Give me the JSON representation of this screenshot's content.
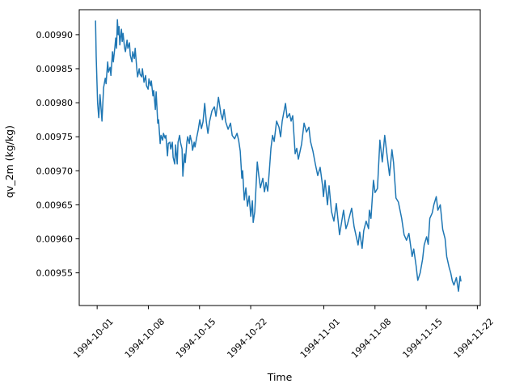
{
  "figure": {
    "background": "#ffffff",
    "plot_background": "#ffffff",
    "spine_color": "#000000"
  },
  "chart_data": {
    "type": "line",
    "title": "",
    "xlabel": "Time",
    "ylabel": "qv_2m (kg/kg)",
    "grid": false,
    "legend": "none",
    "line_color": "#1f77b4",
    "line_width": 1.5,
    "x_unit": "days since 1994-10-01",
    "xlim_days": [
      -2.45,
      52.4
    ],
    "ylim": [
      0.009502,
      0.0099367
    ],
    "x_ticks": [
      {
        "day": 0,
        "label": "1994-10-01"
      },
      {
        "day": 7,
        "label": "1994-10-08"
      },
      {
        "day": 14,
        "label": "1994-10-15"
      },
      {
        "day": 21,
        "label": "1994-10-22"
      },
      {
        "day": 31,
        "label": "1994-11-01"
      },
      {
        "day": 38,
        "label": "1994-11-08"
      },
      {
        "day": 45,
        "label": "1994-11-15"
      },
      {
        "day": 52,
        "label": "1994-11-22"
      }
    ],
    "y_ticks": [
      {
        "value": 0.00955,
        "label": "0.00955"
      },
      {
        "value": 0.0096,
        "label": "0.00960"
      },
      {
        "value": 0.00965,
        "label": "0.00965"
      },
      {
        "value": 0.0097,
        "label": "0.00970"
      },
      {
        "value": 0.00975,
        "label": "0.00975"
      },
      {
        "value": 0.0098,
        "label": "0.00980"
      },
      {
        "value": 0.00985,
        "label": "0.00985"
      },
      {
        "value": 0.0099,
        "label": "0.00990"
      }
    ],
    "series": [
      {
        "name": "qv_2m",
        "points": [
          [
            -0.22,
            0.00992
          ],
          [
            -0.13,
            0.009868
          ],
          [
            0.06,
            0.0098
          ],
          [
            0.22,
            0.009778
          ],
          [
            0.39,
            0.009812
          ],
          [
            0.55,
            0.00979
          ],
          [
            0.66,
            0.009773
          ],
          [
            0.88,
            0.009822
          ],
          [
            1.11,
            0.009836
          ],
          [
            1.22,
            0.009828
          ],
          [
            1.44,
            0.00986
          ],
          [
            1.55,
            0.009845
          ],
          [
            1.77,
            0.009852
          ],
          [
            1.88,
            0.00984
          ],
          [
            2.1,
            0.009875
          ],
          [
            2.21,
            0.00986
          ],
          [
            2.43,
            0.009882
          ],
          [
            2.54,
            0.009895
          ],
          [
            2.65,
            0.00988
          ],
          [
            2.77,
            0.009922
          ],
          [
            2.88,
            0.0099
          ],
          [
            2.99,
            0.009912
          ],
          [
            3.1,
            0.009885
          ],
          [
            3.32,
            0.009908
          ],
          [
            3.43,
            0.00989
          ],
          [
            3.54,
            0.009902
          ],
          [
            3.76,
            0.00988
          ],
          [
            3.87,
            0.009875
          ],
          [
            4.09,
            0.009892
          ],
          [
            4.2,
            0.00988
          ],
          [
            4.42,
            0.009888
          ],
          [
            4.53,
            0.00987
          ],
          [
            4.76,
            0.00986
          ],
          [
            4.87,
            0.009875
          ],
          [
            5.09,
            0.009865
          ],
          [
            5.2,
            0.00988
          ],
          [
            5.42,
            0.00985
          ],
          [
            5.53,
            0.009838
          ],
          [
            5.75,
            0.00985
          ],
          [
            5.86,
            0.009842
          ],
          [
            6.08,
            0.009838
          ],
          [
            6.19,
            0.00985
          ],
          [
            6.41,
            0.00983
          ],
          [
            6.63,
            0.00984
          ],
          [
            6.75,
            0.009825
          ],
          [
            6.97,
            0.00982
          ],
          [
            7.08,
            0.009835
          ],
          [
            7.3,
            0.009825
          ],
          [
            7.41,
            0.009832
          ],
          [
            7.63,
            0.00981
          ],
          [
            7.74,
            0.009818
          ],
          [
            7.96,
            0.00979
          ],
          [
            8.07,
            0.009816
          ],
          [
            8.29,
            0.00977
          ],
          [
            8.4,
            0.009775
          ],
          [
            8.62,
            0.00974
          ],
          [
            8.74,
            0.009752
          ],
          [
            8.96,
            0.009745
          ],
          [
            9.07,
            0.009755
          ],
          [
            9.29,
            0.009748
          ],
          [
            9.4,
            0.009752
          ],
          [
            9.62,
            0.009722
          ],
          [
            9.73,
            0.00974
          ],
          [
            9.95,
            0.009742
          ],
          [
            10.06,
            0.009732
          ],
          [
            10.28,
            0.009742
          ],
          [
            10.39,
            0.00972
          ],
          [
            10.61,
            0.00971
          ],
          [
            10.73,
            0.009738
          ],
          [
            10.95,
            0.00971
          ],
          [
            11.06,
            0.009742
          ],
          [
            11.28,
            0.009752
          ],
          [
            11.39,
            0.009742
          ],
          [
            11.61,
            0.009732
          ],
          [
            11.72,
            0.009692
          ],
          [
            11.94,
            0.009725
          ],
          [
            12.05,
            0.009712
          ],
          [
            12.27,
            0.009742
          ],
          [
            12.38,
            0.00975
          ],
          [
            12.6,
            0.00974
          ],
          [
            12.72,
            0.009752
          ],
          [
            12.94,
            0.009742
          ],
          [
            13.05,
            0.00973
          ],
          [
            13.27,
            0.009742
          ],
          [
            13.38,
            0.009735
          ],
          [
            13.6,
            0.009748
          ],
          [
            13.82,
            0.00976
          ],
          [
            14.04,
            0.009775
          ],
          [
            14.26,
            0.009762
          ],
          [
            14.48,
            0.009772
          ],
          [
            14.71,
            0.009799
          ],
          [
            14.93,
            0.009772
          ],
          [
            15.15,
            0.009755
          ],
          [
            15.37,
            0.009772
          ],
          [
            15.7,
            0.009788
          ],
          [
            16.03,
            0.009794
          ],
          [
            16.25,
            0.00978
          ],
          [
            16.59,
            0.009808
          ],
          [
            16.92,
            0.009784
          ],
          [
            17.14,
            0.009775
          ],
          [
            17.36,
            0.00979
          ],
          [
            17.58,
            0.009772
          ],
          [
            17.91,
            0.009761
          ],
          [
            18.24,
            0.00977
          ],
          [
            18.47,
            0.009752
          ],
          [
            18.8,
            0.009747
          ],
          [
            19.13,
            0.009755
          ],
          [
            19.35,
            0.009745
          ],
          [
            19.57,
            0.009729
          ],
          [
            19.79,
            0.009689
          ],
          [
            19.9,
            0.0097
          ],
          [
            20.12,
            0.009657
          ],
          [
            20.34,
            0.009675
          ],
          [
            20.56,
            0.009648
          ],
          [
            20.79,
            0.009663
          ],
          [
            21.01,
            0.009633
          ],
          [
            21.23,
            0.009656
          ],
          [
            21.34,
            0.009624
          ],
          [
            21.56,
            0.00964
          ],
          [
            21.9,
            0.009713
          ],
          [
            22.11,
            0.009693
          ],
          [
            22.33,
            0.009675
          ],
          [
            22.66,
            0.009689
          ],
          [
            22.88,
            0.009669
          ],
          [
            23.1,
            0.009683
          ],
          [
            23.33,
            0.00967
          ],
          [
            23.55,
            0.0097
          ],
          [
            23.77,
            0.009733
          ],
          [
            23.99,
            0.009752
          ],
          [
            24.21,
            0.009743
          ],
          [
            24.54,
            0.009773
          ],
          [
            24.87,
            0.009764
          ],
          [
            25.09,
            0.00975
          ],
          [
            25.31,
            0.009773
          ],
          [
            25.76,
            0.009799
          ],
          [
            25.98,
            0.009778
          ],
          [
            26.31,
            0.009784
          ],
          [
            26.53,
            0.009773
          ],
          [
            26.75,
            0.009781
          ],
          [
            27.08,
            0.009725
          ],
          [
            27.3,
            0.009733
          ],
          [
            27.52,
            0.009717
          ],
          [
            27.96,
            0.009739
          ],
          [
            28.3,
            0.00977
          ],
          [
            28.63,
            0.009757
          ],
          [
            28.96,
            0.009764
          ],
          [
            29.18,
            0.009743
          ],
          [
            29.51,
            0.009729
          ],
          [
            29.84,
            0.00971
          ],
          [
            30.17,
            0.009693
          ],
          [
            30.5,
            0.009705
          ],
          [
            30.83,
            0.009678
          ],
          [
            30.95,
            0.009662
          ],
          [
            31.17,
            0.009686
          ],
          [
            31.5,
            0.00965
          ],
          [
            31.72,
            0.009678
          ],
          [
            32.05,
            0.00964
          ],
          [
            32.38,
            0.009626
          ],
          [
            32.71,
            0.009652
          ],
          [
            33.15,
            0.009606
          ],
          [
            33.7,
            0.009642
          ],
          [
            34.03,
            0.009615
          ],
          [
            34.25,
            0.009622
          ],
          [
            34.81,
            0.009645
          ],
          [
            35.14,
            0.009618
          ],
          [
            35.69,
            0.009591
          ],
          [
            35.91,
            0.00961
          ],
          [
            36.24,
            0.009586
          ],
          [
            36.46,
            0.009612
          ],
          [
            36.79,
            0.009626
          ],
          [
            37.12,
            0.009615
          ],
          [
            37.23,
            0.009642
          ],
          [
            37.45,
            0.00963
          ],
          [
            37.79,
            0.009686
          ],
          [
            38.01,
            0.009668
          ],
          [
            38.34,
            0.009674
          ],
          [
            38.67,
            0.009745
          ],
          [
            39,
            0.009713
          ],
          [
            39.33,
            0.009752
          ],
          [
            39.66,
            0.009722
          ],
          [
            39.99,
            0.009693
          ],
          [
            40.32,
            0.009731
          ],
          [
            40.54,
            0.009712
          ],
          [
            40.87,
            0.00966
          ],
          [
            41.2,
            0.009654
          ],
          [
            41.65,
            0.00963
          ],
          [
            41.98,
            0.009606
          ],
          [
            42.31,
            0.009598
          ],
          [
            42.64,
            0.009608
          ],
          [
            43.08,
            0.009574
          ],
          [
            43.3,
            0.009585
          ],
          [
            43.63,
            0.00956
          ],
          [
            43.85,
            0.009539
          ],
          [
            44.18,
            0.00955
          ],
          [
            44.51,
            0.00957
          ],
          [
            44.73,
            0.009591
          ],
          [
            45.06,
            0.009603
          ],
          [
            45.28,
            0.009592
          ],
          [
            45.5,
            0.00963
          ],
          [
            45.83,
            0.009638
          ],
          [
            46.05,
            0.00965
          ],
          [
            46.38,
            0.009662
          ],
          [
            46.6,
            0.009642
          ],
          [
            46.93,
            0.00965
          ],
          [
            47.26,
            0.009614
          ],
          [
            47.59,
            0.0096
          ],
          [
            47.81,
            0.009574
          ],
          [
            48.14,
            0.009558
          ],
          [
            48.36,
            0.00955
          ],
          [
            48.58,
            0.009538
          ],
          [
            48.8,
            0.009532
          ],
          [
            49.13,
            0.009543
          ],
          [
            49.42,
            0.009523
          ],
          [
            49.64,
            0.009545
          ],
          [
            49.75,
            0.009538
          ]
        ]
      }
    ]
  }
}
